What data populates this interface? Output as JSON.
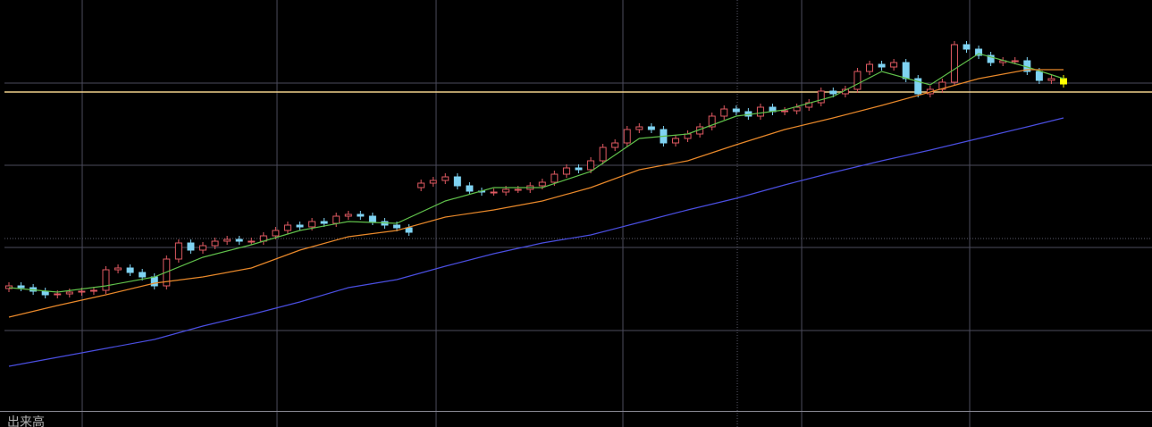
{
  "chart_data": {
    "type": "candlestick",
    "ylim": [
      0,
      460
    ],
    "open": [
      137,
      140,
      138,
      134,
      130,
      131,
      133,
      134,
      135,
      158,
      160,
      155,
      150,
      140,
      170,
      188,
      180,
      185,
      190,
      192,
      190,
      190,
      196,
      202,
      208,
      206,
      212,
      210,
      218,
      220,
      218,
      212,
      208,
      205,
      250,
      255,
      258,
      262,
      252,
      246,
      245,
      245,
      248,
      248,
      252,
      256,
      265,
      272,
      270,
      280,
      295,
      300,
      315,
      318,
      315,
      300,
      305,
      310,
      318,
      330,
      338,
      335,
      330,
      340,
      335,
      336,
      340,
      345,
      358,
      355,
      360,
      380,
      388,
      385,
      390,
      372,
      355,
      360,
      368,
      410,
      405,
      398,
      390,
      392,
      392,
      380,
      370,
      372
    ],
    "high": [
      144,
      144,
      142,
      138,
      135,
      137,
      138,
      139,
      162,
      164,
      164,
      159,
      154,
      174,
      192,
      192,
      189,
      194,
      196,
      196,
      194,
      200,
      206,
      212,
      212,
      216,
      216,
      222,
      224,
      224,
      222,
      216,
      212,
      209,
      259,
      262,
      266,
      266,
      256,
      250,
      249,
      252,
      252,
      256,
      260,
      269,
      276,
      276,
      284,
      299,
      304,
      319,
      322,
      322,
      319,
      309,
      314,
      322,
      334,
      342,
      342,
      339,
      344,
      344,
      340,
      344,
      349,
      362,
      362,
      364,
      384,
      392,
      392,
      394,
      394,
      376,
      364,
      372,
      414,
      414,
      409,
      402,
      396,
      396,
      396,
      384,
      376,
      376
    ],
    "low": [
      133,
      134,
      130,
      126,
      126,
      127,
      129,
      130,
      131,
      154,
      151,
      146,
      136,
      136,
      166,
      176,
      176,
      181,
      186,
      186,
      186,
      186,
      192,
      198,
      202,
      202,
      206,
      206,
      214,
      214,
      208,
      204,
      201,
      196,
      246,
      251,
      254,
      248,
      242,
      241,
      241,
      241,
      244,
      244,
      248,
      252,
      261,
      266,
      266,
      276,
      291,
      296,
      311,
      311,
      296,
      296,
      301,
      306,
      314,
      326,
      331,
      326,
      326,
      331,
      331,
      332,
      336,
      341,
      351,
      351,
      356,
      376,
      381,
      381,
      368,
      351,
      351,
      356,
      364,
      401,
      394,
      386,
      386,
      388,
      376,
      366,
      366,
      362
    ],
    "close": [
      140,
      138,
      134,
      130,
      131,
      133,
      134,
      135,
      158,
      160,
      155,
      150,
      140,
      170,
      188,
      180,
      185,
      190,
      192,
      190,
      190,
      196,
      202,
      208,
      206,
      212,
      210,
      218,
      220,
      218,
      212,
      208,
      205,
      200,
      255,
      258,
      262,
      252,
      246,
      245,
      245,
      248,
      248,
      252,
      256,
      265,
      272,
      270,
      280,
      295,
      300,
      315,
      318,
      315,
      300,
      305,
      310,
      318,
      330,
      338,
      335,
      330,
      340,
      335,
      336,
      340,
      345,
      358,
      355,
      360,
      380,
      388,
      385,
      390,
      372,
      355,
      360,
      368,
      410,
      405,
      398,
      390,
      392,
      392,
      380,
      370,
      372,
      366
    ],
    "up_color": "#e05a62",
    "down_color": "#7fd3f2",
    "last_color": "#ffff00",
    "lines": [
      {
        "color": "#5fbf4a",
        "x": [
          0,
          4,
          8,
          12,
          16,
          20,
          24,
          28,
          32,
          36,
          40,
          44,
          48,
          52,
          56,
          60,
          64,
          68,
          72,
          76,
          80,
          84,
          87
        ],
        "values": [
          138,
          133,
          140,
          150,
          172,
          186,
          202,
          212,
          210,
          235,
          250,
          250,
          268,
          305,
          310,
          330,
          337,
          352,
          380,
          365,
          400,
          385,
          372
        ]
      },
      {
        "color": "#e8882a",
        "x": [
          0,
          4,
          8,
          12,
          16,
          20,
          24,
          28,
          32,
          36,
          40,
          44,
          48,
          52,
          56,
          60,
          64,
          68,
          72,
          76,
          80,
          84,
          87
        ],
        "values": [
          105,
          118,
          130,
          143,
          150,
          160,
          180,
          195,
          202,
          217,
          225,
          235,
          250,
          270,
          280,
          298,
          315,
          328,
          342,
          357,
          372,
          382,
          382
        ]
      },
      {
        "color": "#4a4ee0",
        "x": [
          0,
          4,
          8,
          12,
          16,
          20,
          24,
          28,
          32,
          36,
          40,
          44,
          48,
          52,
          56,
          60,
          64,
          68,
          72,
          76,
          80,
          84,
          87
        ],
        "values": [
          50,
          60,
          70,
          80,
          95,
          108,
          122,
          138,
          147,
          162,
          176,
          188,
          197,
          211,
          225,
          238,
          253,
          267,
          280,
          292,
          305,
          318,
          328
        ]
      }
    ],
    "price_line": 357,
    "price_line_color": "#f0d08a",
    "volume_label": "出来高"
  }
}
